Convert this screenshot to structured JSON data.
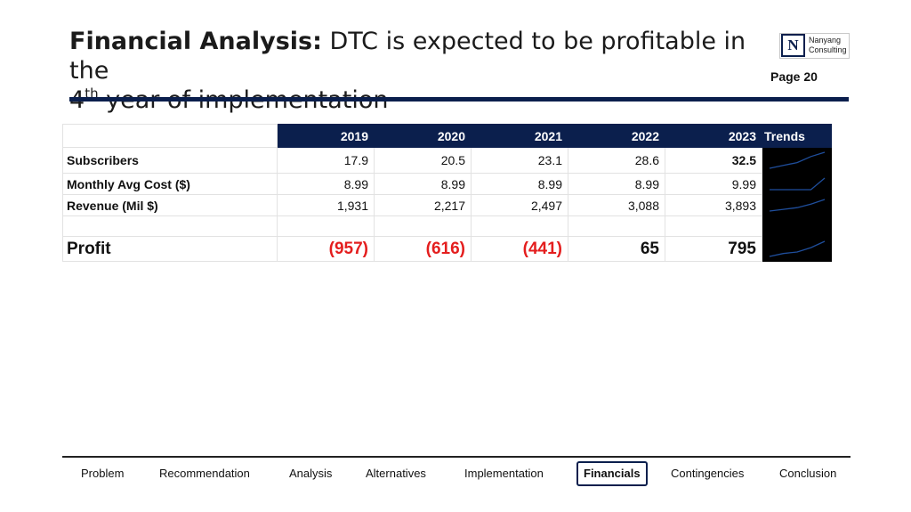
{
  "slide": {
    "title_bold": "Financial Analysis:",
    "title_rest": " DTC is expected to be profitable in the",
    "title_line2_num": "4",
    "title_line2_sup": "th",
    "title_line2_rest": " year of implementation",
    "page": "Page 20"
  },
  "logo": {
    "mark": "N",
    "line1": "Nanyang",
    "line2": "Consulting"
  },
  "table": {
    "years": [
      "2019",
      "2020",
      "2021",
      "2022",
      "2023"
    ],
    "trends_label": "Trends",
    "rows": [
      {
        "label": "Subscribers",
        "values": [
          "17.9",
          "20.5",
          "23.1",
          "28.6",
          "32.5"
        ],
        "spark": [
          17.9,
          20.5,
          23.1,
          28.6,
          32.5
        ]
      },
      {
        "label": "Monthly Avg Cost ($)",
        "values": [
          "8.99",
          "8.99",
          "8.99",
          "8.99",
          "9.99"
        ],
        "spark": [
          8.99,
          8.99,
          8.99,
          8.99,
          9.99
        ]
      },
      {
        "label": "Revenue (Mil $)",
        "values": [
          "1,931",
          "2,217",
          "2,497",
          "3,088",
          "3,893"
        ],
        "spark": [
          1931,
          2217,
          2497,
          3088,
          3893
        ]
      }
    ],
    "profit": {
      "label": "Profit",
      "values": [
        "(957)",
        "(616)",
        "(441)",
        "65",
        "795"
      ],
      "spark": [
        -957,
        -616,
        -441,
        65,
        795
      ]
    }
  },
  "colors": {
    "navy": "#0b1f4d",
    "negative": "#e41e1e",
    "sparkline": "#1f4e9c"
  },
  "nav": {
    "items": [
      "Problem",
      "Recommendation",
      "Analysis",
      "Alternatives",
      "Implementation",
      "Financials",
      "Contingencies",
      "Conclusion"
    ],
    "active": "Financials"
  }
}
